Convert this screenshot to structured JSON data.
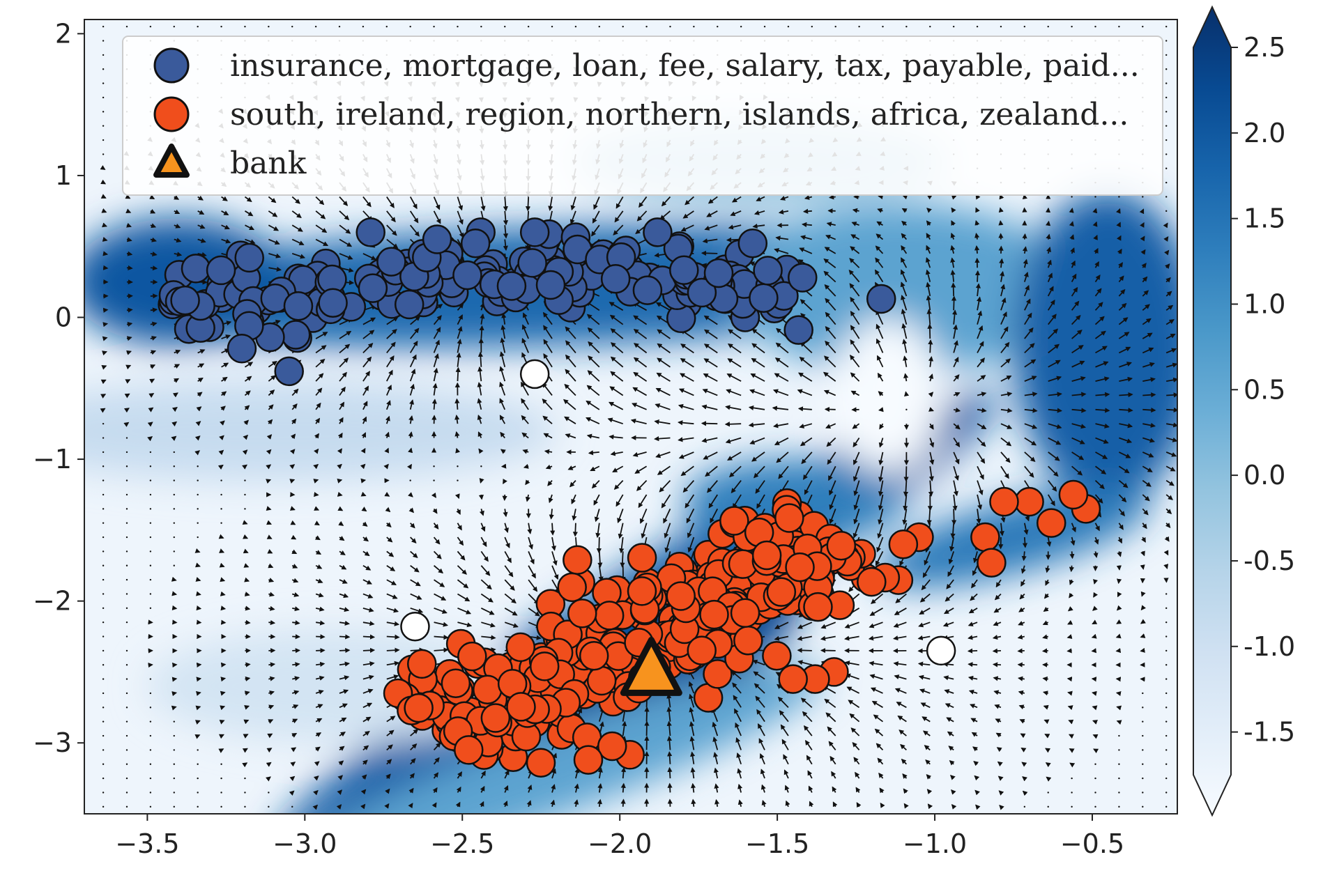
{
  "chart_data": {
    "type": "scatter",
    "background": "filled contour of a scalar field with an overlaid vector (quiver) field",
    "xlim": [
      -3.7,
      -0.23
    ],
    "ylim": [
      -3.5,
      2.1
    ],
    "xticks": [
      {
        "value": -3.5,
        "label": "−3.5"
      },
      {
        "value": -3.0,
        "label": "−3.0"
      },
      {
        "value": -2.5,
        "label": "−2.5"
      },
      {
        "value": -2.0,
        "label": "−2.0"
      },
      {
        "value": -1.5,
        "label": "−1.5"
      },
      {
        "value": -1.0,
        "label": "−1.0"
      },
      {
        "value": -0.5,
        "label": "−0.5"
      }
    ],
    "yticks": [
      {
        "value": 2,
        "label": "2"
      },
      {
        "value": 1,
        "label": "1"
      },
      {
        "value": 0,
        "label": "0"
      },
      {
        "value": -1,
        "label": "−1"
      },
      {
        "value": -2,
        "label": "−2"
      },
      {
        "value": -3,
        "label": "−3"
      }
    ],
    "grid": false,
    "legend_position": "top",
    "colorbar": {
      "colormap": "Blues",
      "range": [
        -1.75,
        2.5
      ],
      "extend": "both",
      "ticks": [
        {
          "value": 2.5,
          "label": "2.5"
        },
        {
          "value": 2.0,
          "label": "2.0"
        },
        {
          "value": 1.5,
          "label": "1.5"
        },
        {
          "value": 1.0,
          "label": "1.0"
        },
        {
          "value": 0.5,
          "label": "0.5"
        },
        {
          "value": 0.0,
          "label": "0.0"
        },
        {
          "value": -0.5,
          "label": "-0.5"
        },
        {
          "value": -1.0,
          "label": "-1.0"
        },
        {
          "value": -1.5,
          "label": "-1.5"
        }
      ]
    },
    "series": [
      {
        "name": "insurance, mortgage, loan, fee, salary, tax, payable, paid...",
        "marker": "circle",
        "color": "#3a5a9b",
        "cluster": {
          "center": [
            -2.45,
            0.2
          ],
          "x_range": [
            -3.42,
            -1.42
          ],
          "y_range": [
            -0.25,
            0.6
          ],
          "count": 180
        },
        "points": [
          [
            -1.17,
            0.13
          ],
          [
            -1.42,
            0.28
          ],
          [
            -1.53,
            0.33
          ],
          [
            -1.88,
            0.6
          ],
          [
            -3.05,
            -0.38
          ],
          [
            -3.2,
            -0.22
          ],
          [
            -3.38,
            0.12
          ],
          [
            -2.27,
            0.6
          ],
          [
            -2.58,
            0.55
          ]
        ]
      },
      {
        "name": "south, ireland, region, northern, islands, africa, zealand...",
        "marker": "circle",
        "color": "#f04e1c",
        "cluster": {
          "center": [
            -2.0,
            -2.4
          ],
          "axis_from": [
            -2.55,
            -2.95
          ],
          "axis_to": [
            -1.3,
            -1.55
          ],
          "count": 320
        },
        "points": [
          [
            -0.52,
            -1.35
          ],
          [
            -0.56,
            -1.25
          ],
          [
            -0.63,
            -1.45
          ],
          [
            -0.7,
            -1.3
          ],
          [
            -0.78,
            -1.3
          ],
          [
            -0.84,
            -1.55
          ],
          [
            -0.82,
            -1.73
          ],
          [
            -1.05,
            -1.55
          ],
          [
            -1.1,
            -1.6
          ],
          [
            -1.32,
            -2.5
          ],
          [
            -1.38,
            -2.55
          ],
          [
            -1.45,
            -2.55
          ],
          [
            -2.1,
            -3.12
          ],
          [
            -2.48,
            -3.05
          ]
        ]
      },
      {
        "name": "bank",
        "marker": "triangle",
        "color": "#f7931e",
        "points": [
          [
            -1.9,
            -2.5
          ]
        ]
      },
      {
        "name": "",
        "marker": "circle",
        "color": "#ffffff",
        "points": [
          [
            -2.27,
            -0.4
          ],
          [
            -2.65,
            -2.18
          ],
          [
            -0.98,
            -2.35
          ]
        ]
      }
    ]
  }
}
